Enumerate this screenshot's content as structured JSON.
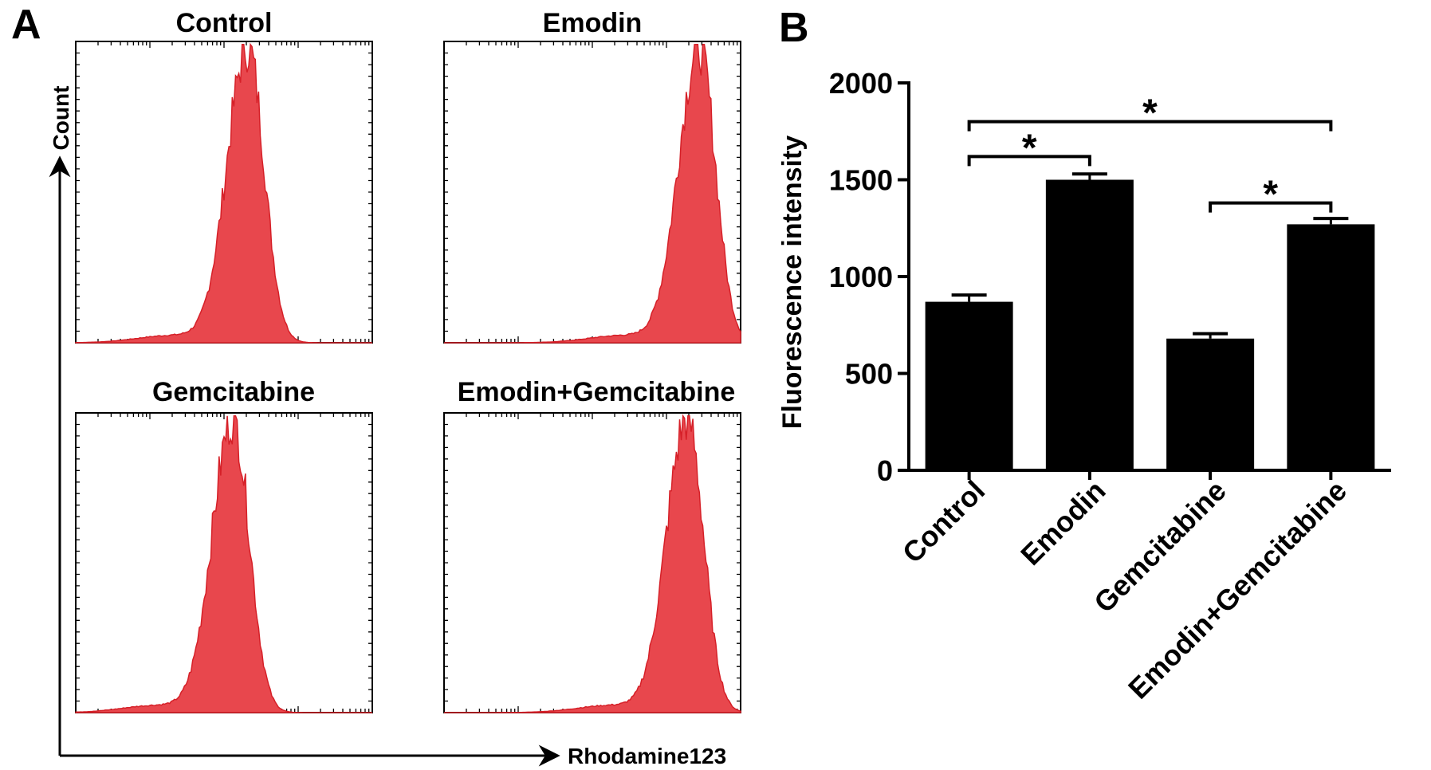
{
  "panel_a": {
    "letter": "A",
    "y_axis_label": "Count",
    "x_axis_label": "Rhodamine123",
    "hist_color": "#e8474d",
    "hist_edge": "#d62028",
    "panels": [
      {
        "title": "Control",
        "peak": 0.58
      },
      {
        "title": "Emodin",
        "peak": 0.86
      },
      {
        "title": "Gemcitabine",
        "peak": 0.53
      },
      {
        "title": "Emodin+Gemcitabine",
        "peak": 0.82
      }
    ]
  },
  "panel_b": {
    "letter": "B"
  },
  "chart_data": {
    "type": "bar",
    "title": "",
    "xlabel": "",
    "ylabel": "Fluorescence intensity",
    "categories": [
      "Control",
      "Emodin",
      "Gemcitabine",
      "Emodin+Gemcitabine"
    ],
    "values": [
      870,
      1500,
      680,
      1270
    ],
    "errors": [
      35,
      30,
      25,
      30
    ],
    "ylim": [
      0,
      2000
    ],
    "yticks": [
      0,
      500,
      1000,
      1500,
      2000
    ],
    "bar_color": "#000000",
    "grid": false,
    "significance": [
      {
        "from": 0,
        "to": 1,
        "label": "*",
        "at": 1620
      },
      {
        "from": 0,
        "to": 3,
        "label": "*",
        "at": 1800
      },
      {
        "from": 2,
        "to": 3,
        "label": "*",
        "at": 1380
      }
    ]
  }
}
